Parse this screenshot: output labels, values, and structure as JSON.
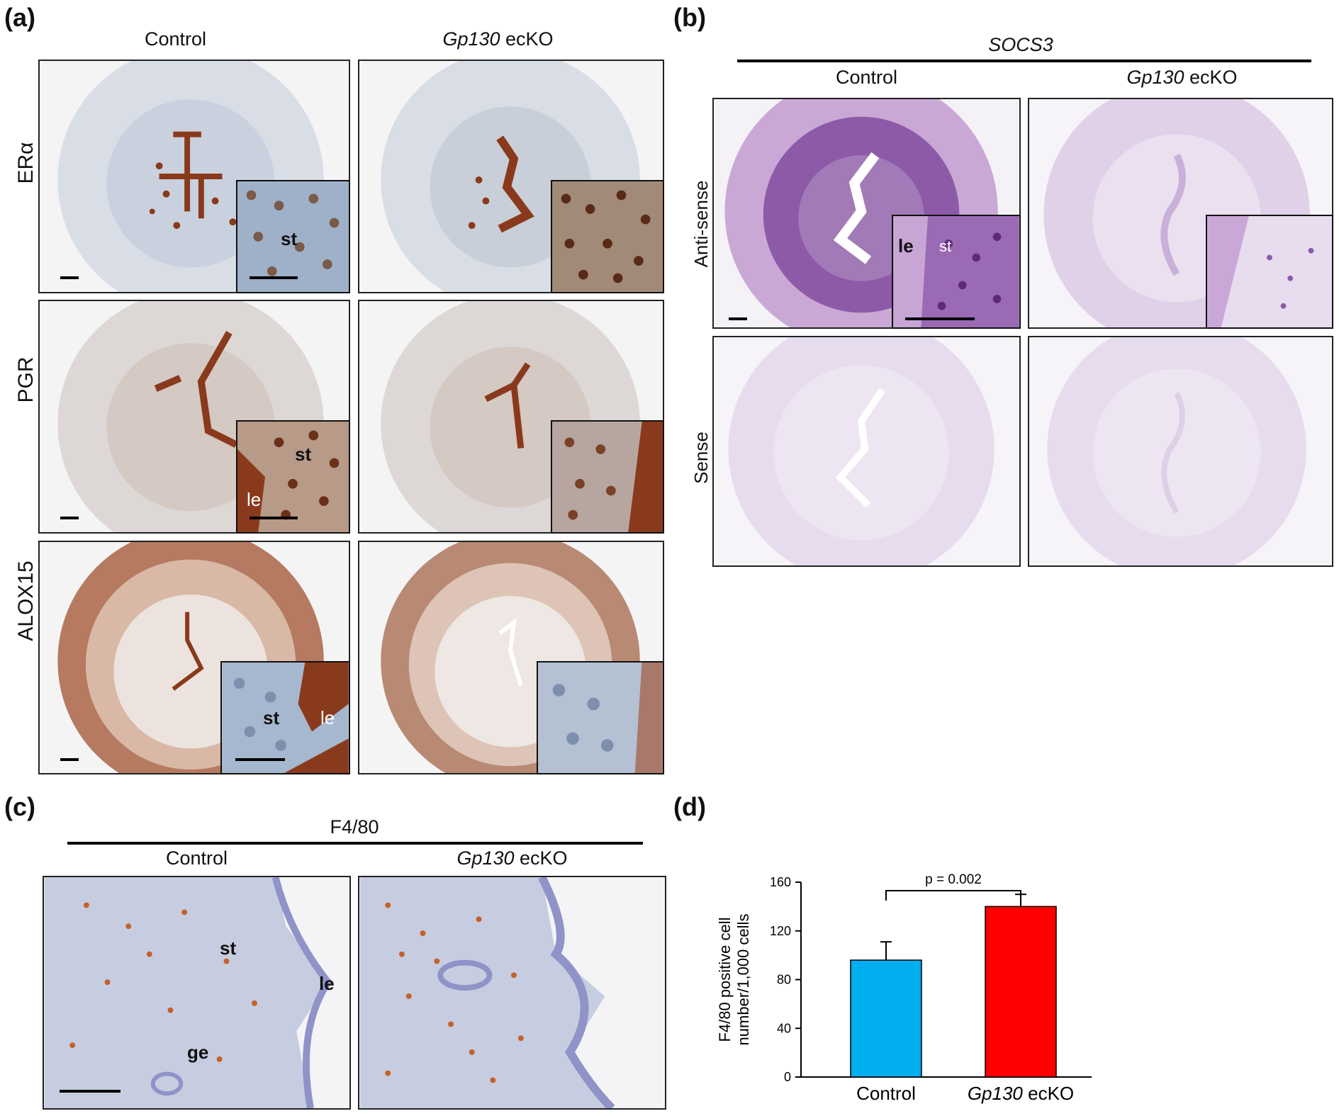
{
  "panels": {
    "a": {
      "letter": "(a)",
      "col_control": "Control",
      "col_ko_gene": "Gp130",
      "col_ko_suffix": " ecKO",
      "rows": [
        "ERα",
        "PGR",
        "ALOX15"
      ],
      "inset_labels": {
        "st": "st",
        "le": "le"
      }
    },
    "b": {
      "letter": "(b)",
      "probe": "SOCS3",
      "col_control": "Control",
      "col_ko_gene": "Gp130",
      "col_ko_suffix": " ecKO",
      "rows": [
        "Anti-sense",
        "Sense"
      ],
      "inset_labels": {
        "le": "le",
        "st": "st"
      }
    },
    "c": {
      "letter": "(c)",
      "marker": "F4/80",
      "col_control": "Control",
      "col_ko_gene": "Gp130",
      "col_ko_suffix": " ecKO",
      "tissue_labels": {
        "st": "st",
        "le": "le",
        "ge": "ge"
      }
    },
    "d": {
      "letter": "(d)"
    }
  },
  "colors": {
    "control_bar": "#00aeef",
    "ko_bar": "#ff0000",
    "dab_brown": "#8a3a1c",
    "hematoxylin": "#8fa6c8",
    "ish_purple": "#7a3e98"
  },
  "chart_data": {
    "type": "bar",
    "categories": [
      "Control",
      "Gp130 ecKO"
    ],
    "category_parts": [
      {
        "italic": "",
        "plain": "Control"
      },
      {
        "italic": "Gp130",
        "plain": " ecKO"
      }
    ],
    "values": [
      96,
      140
    ],
    "errors": [
      15,
      10
    ],
    "ylabel_line1": "F4/80 positive cell",
    "ylabel_line2": "number/1,000 cells",
    "ylim": [
      0,
      160
    ],
    "yticks": [
      0,
      40,
      80,
      120,
      160
    ],
    "annotation": "p = 0.002",
    "bar_colors": [
      "#00aeef",
      "#ff0000"
    ]
  }
}
